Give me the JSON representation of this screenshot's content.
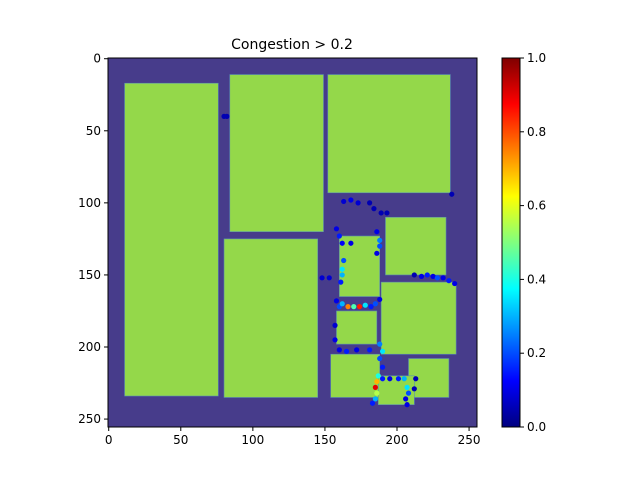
{
  "chart_data": {
    "type": "heatmap",
    "title": "Congestion > 0.2",
    "xlabel": "",
    "ylabel": "",
    "xlim": [
      -0.5,
      255.5
    ],
    "ylim": [
      255.5,
      -0.5
    ],
    "x_ticks": [
      0,
      50,
      100,
      150,
      200,
      250
    ],
    "y_ticks": [
      0,
      50,
      100,
      150,
      200,
      250
    ],
    "grid": false,
    "colors": {
      "background": "#473c8b",
      "macro": "#94d84a",
      "colormap": "jet"
    },
    "colorbar": {
      "min": 0.0,
      "max": 1.0,
      "ticks": [
        "0.0",
        "0.2",
        "0.4",
        "0.6",
        "0.8",
        "1.0"
      ],
      "tick_values": [
        0.0,
        0.2,
        0.4,
        0.6,
        0.8,
        1.0
      ]
    },
    "macros": [
      {
        "x0": 11,
        "x1": 76,
        "y0": 17,
        "y1": 234
      },
      {
        "x0": 84,
        "x1": 149,
        "y0": 11,
        "y1": 120
      },
      {
        "x0": 152,
        "x1": 237,
        "y0": 11,
        "y1": 93
      },
      {
        "x0": 80,
        "x1": 145,
        "y0": 125,
        "y1": 235
      },
      {
        "x0": 192,
        "x1": 234,
        "y0": 110,
        "y1": 150
      },
      {
        "x0": 160,
        "x1": 188,
        "y0": 123,
        "y1": 165
      },
      {
        "x0": 189,
        "x1": 241,
        "y0": 155,
        "y1": 205
      },
      {
        "x0": 158,
        "x1": 186,
        "y0": 175,
        "y1": 198
      },
      {
        "x0": 154,
        "x1": 188,
        "y0": 205,
        "y1": 235
      },
      {
        "x0": 208,
        "x1": 236,
        "y0": 208,
        "y1": 235
      },
      {
        "x0": 187,
        "x1": 212,
        "y0": 220,
        "y1": 240
      }
    ],
    "points": [
      {
        "x": 80,
        "y": 40,
        "v": 0.05
      },
      {
        "x": 82,
        "y": 40,
        "v": 0.05
      },
      {
        "x": 163,
        "y": 99,
        "v": 0.08
      },
      {
        "x": 168,
        "y": 98,
        "v": 0.1
      },
      {
        "x": 173,
        "y": 100,
        "v": 0.08
      },
      {
        "x": 181,
        "y": 100,
        "v": 0.05
      },
      {
        "x": 184,
        "y": 104,
        "v": 0.05
      },
      {
        "x": 189,
        "y": 107,
        "v": 0.05
      },
      {
        "x": 193,
        "y": 107,
        "v": 0.05
      },
      {
        "x": 238,
        "y": 94,
        "v": 0.05
      },
      {
        "x": 158,
        "y": 118,
        "v": 0.1
      },
      {
        "x": 160,
        "y": 123,
        "v": 0.15
      },
      {
        "x": 162,
        "y": 128,
        "v": 0.12
      },
      {
        "x": 163,
        "y": 140,
        "v": 0.2
      },
      {
        "x": 162,
        "y": 146,
        "v": 0.35
      },
      {
        "x": 162,
        "y": 150,
        "v": 0.3
      },
      {
        "x": 161,
        "y": 155,
        "v": 0.15
      },
      {
        "x": 168,
        "y": 128,
        "v": 0.1
      },
      {
        "x": 186,
        "y": 120,
        "v": 0.1
      },
      {
        "x": 188,
        "y": 126,
        "v": 0.25
      },
      {
        "x": 188,
        "y": 130,
        "v": 0.2
      },
      {
        "x": 186,
        "y": 135,
        "v": 0.1
      },
      {
        "x": 148,
        "y": 152,
        "v": 0.08
      },
      {
        "x": 153,
        "y": 152,
        "v": 0.08
      },
      {
        "x": 212,
        "y": 150,
        "v": 0.05
      },
      {
        "x": 217,
        "y": 151,
        "v": 0.1
      },
      {
        "x": 221,
        "y": 150,
        "v": 0.15
      },
      {
        "x": 225,
        "y": 151,
        "v": 0.1
      },
      {
        "x": 228,
        "y": 152,
        "v": 0.2
      },
      {
        "x": 232,
        "y": 152,
        "v": 0.1
      },
      {
        "x": 236,
        "y": 154,
        "v": 0.15
      },
      {
        "x": 240,
        "y": 156,
        "v": 0.1
      },
      {
        "x": 158,
        "y": 168,
        "v": 0.1
      },
      {
        "x": 160,
        "y": 172,
        "v": 0.2
      },
      {
        "x": 162,
        "y": 170,
        "v": 0.3
      },
      {
        "x": 166,
        "y": 172,
        "v": 0.75
      },
      {
        "x": 170,
        "y": 172,
        "v": 0.45
      },
      {
        "x": 174,
        "y": 172,
        "v": 0.85
      },
      {
        "x": 178,
        "y": 171,
        "v": 0.35
      },
      {
        "x": 182,
        "y": 172,
        "v": 0.15
      },
      {
        "x": 185,
        "y": 170,
        "v": 0.2
      },
      {
        "x": 188,
        "y": 167,
        "v": 0.1
      },
      {
        "x": 157,
        "y": 185,
        "v": 0.08
      },
      {
        "x": 157,
        "y": 195,
        "v": 0.1
      },
      {
        "x": 160,
        "y": 202,
        "v": 0.1
      },
      {
        "x": 165,
        "y": 203,
        "v": 0.15
      },
      {
        "x": 172,
        "y": 202,
        "v": 0.1
      },
      {
        "x": 181,
        "y": 202,
        "v": 0.15
      },
      {
        "x": 188,
        "y": 198,
        "v": 0.25
      },
      {
        "x": 190,
        "y": 203,
        "v": 0.35
      },
      {
        "x": 188,
        "y": 208,
        "v": 0.2
      },
      {
        "x": 190,
        "y": 214,
        "v": 0.15
      },
      {
        "x": 187,
        "y": 220,
        "v": 0.4
      },
      {
        "x": 186,
        "y": 224,
        "v": 0.7
      },
      {
        "x": 185,
        "y": 228,
        "v": 0.9
      },
      {
        "x": 186,
        "y": 232,
        "v": 0.55
      },
      {
        "x": 185,
        "y": 236,
        "v": 0.3
      },
      {
        "x": 183,
        "y": 239,
        "v": 0.15
      },
      {
        "x": 190,
        "y": 222,
        "v": 0.15
      },
      {
        "x": 195,
        "y": 222,
        "v": 0.1
      },
      {
        "x": 201,
        "y": 222,
        "v": 0.15
      },
      {
        "x": 205,
        "y": 222,
        "v": 0.3
      },
      {
        "x": 207,
        "y": 228,
        "v": 0.35
      },
      {
        "x": 208,
        "y": 232,
        "v": 0.2
      },
      {
        "x": 206,
        "y": 236,
        "v": 0.1
      },
      {
        "x": 207,
        "y": 240,
        "v": 0.1
      },
      {
        "x": 213,
        "y": 222,
        "v": 0.05
      },
      {
        "x": 212,
        "y": 229,
        "v": 0.05
      }
    ]
  }
}
